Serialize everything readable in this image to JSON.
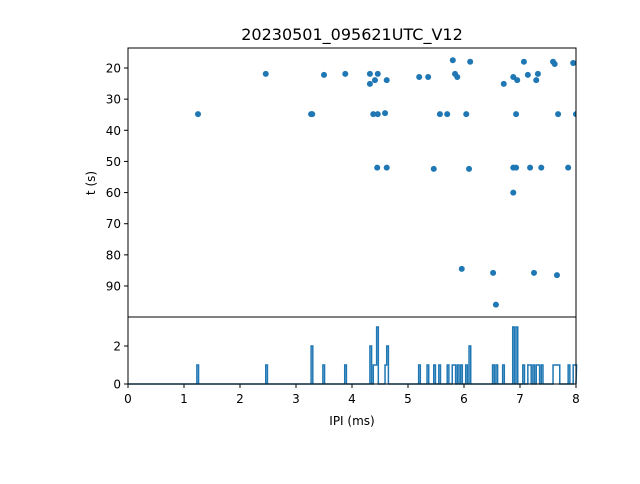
{
  "chart_data": [
    {
      "type": "scatter",
      "title": "20230501_095621UTC_V12",
      "xlabel": "",
      "ylabel": "t (s)",
      "xlim": [
        0,
        8
      ],
      "ylim": [
        100,
        13.6
      ],
      "y_inverted": true,
      "yticks": [
        20,
        30,
        40,
        50,
        60,
        70,
        80,
        90
      ],
      "color": "#1f77b4",
      "points": [
        [
          1.25,
          34.8
        ],
        [
          2.46,
          21.9
        ],
        [
          3.27,
          34.8
        ],
        [
          3.29,
          34.8
        ],
        [
          3.5,
          22.2
        ],
        [
          3.88,
          21.9
        ],
        [
          4.32,
          21.9
        ],
        [
          4.32,
          25.1
        ],
        [
          4.41,
          23.9
        ],
        [
          4.46,
          21.9
        ],
        [
          4.38,
          34.8
        ],
        [
          4.46,
          34.8
        ],
        [
          4.59,
          34.5
        ],
        [
          4.45,
          52.0
        ],
        [
          4.62,
          52.0
        ],
        [
          4.62,
          23.9
        ],
        [
          5.2,
          22.9
        ],
        [
          5.36,
          22.9
        ],
        [
          5.8,
          17.5
        ],
        [
          5.84,
          21.9
        ],
        [
          5.88,
          22.9
        ],
        [
          6.11,
          18.0
        ],
        [
          5.57,
          34.8
        ],
        [
          5.7,
          34.8
        ],
        [
          6.04,
          34.8
        ],
        [
          5.46,
          52.4
        ],
        [
          6.09,
          52.4
        ],
        [
          5.96,
          84.5
        ],
        [
          6.52,
          85.8
        ],
        [
          6.57,
          96.0
        ],
        [
          6.71,
          25.1
        ],
        [
          6.88,
          22.9
        ],
        [
          6.95,
          23.9
        ],
        [
          7.07,
          18.0
        ],
        [
          7.14,
          22.2
        ],
        [
          7.29,
          23.9
        ],
        [
          7.32,
          21.9
        ],
        [
          6.93,
          34.8
        ],
        [
          6.88,
          52.0
        ],
        [
          6.93,
          52.0
        ],
        [
          6.88,
          60.0
        ],
        [
          7.18,
          52.0
        ],
        [
          7.38,
          52.0
        ],
        [
          7.25,
          85.8
        ],
        [
          7.59,
          18.0
        ],
        [
          7.62,
          18.7
        ],
        [
          7.68,
          34.8
        ],
        [
          7.66,
          86.5
        ],
        [
          7.86,
          52.0
        ],
        [
          7.95,
          18.4
        ],
        [
          8.0,
          34.8
        ]
      ]
    },
    {
      "type": "line",
      "title": "",
      "xlabel": "IPI (ms)",
      "ylabel": "",
      "xlim": [
        0,
        8
      ],
      "ylim": [
        0,
        3.5
      ],
      "xticks": [
        0,
        1,
        2,
        3,
        4,
        5,
        6,
        7,
        8
      ],
      "yticks": [
        0,
        2
      ],
      "bin_width": 0.03,
      "description_source": "histogram of scatter IPI values",
      "color": "#1f77b4"
    }
  ]
}
